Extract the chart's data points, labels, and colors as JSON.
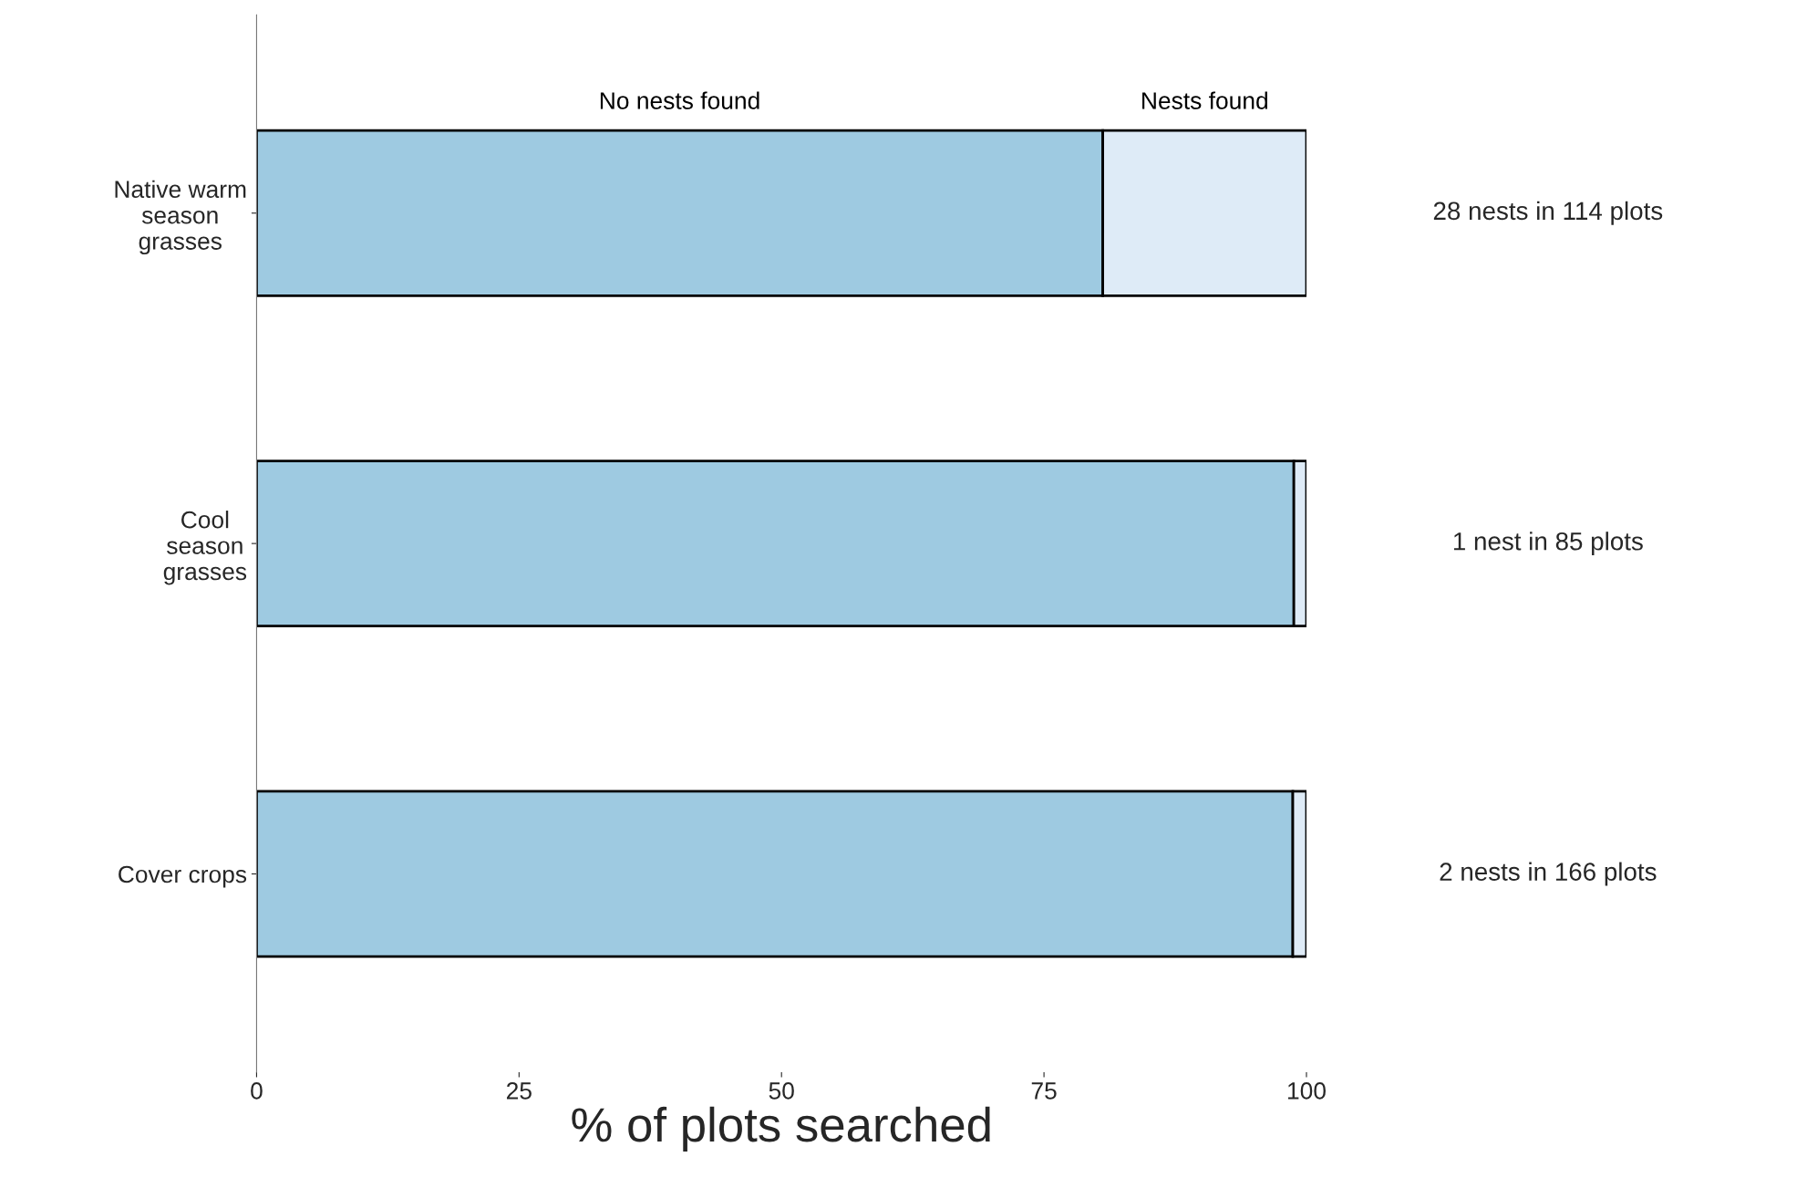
{
  "chart_data": {
    "type": "bar",
    "orientation": "horizontal",
    "stacked": true,
    "categories": [
      "Native warm\nseason\ngrasses",
      "Cool\nseason\ngrasses",
      "Cover crops"
    ],
    "series": [
      {
        "name": "No nests found",
        "color": "#9ecae1",
        "values": [
          80.6,
          98.8,
          98.7
        ]
      },
      {
        "name": "Nests found",
        "color": "#deebf7",
        "values": [
          19.4,
          1.2,
          1.3
        ]
      }
    ],
    "xlabel": "% of plots searched",
    "xlim": [
      0,
      100
    ],
    "xticks": [
      0,
      25,
      50,
      75,
      100
    ],
    "annotations": [
      "28 nests in 114 plots",
      "1 nest in 85 plots",
      "2 nests in 166 plots"
    ],
    "grid": false,
    "legend": false
  }
}
